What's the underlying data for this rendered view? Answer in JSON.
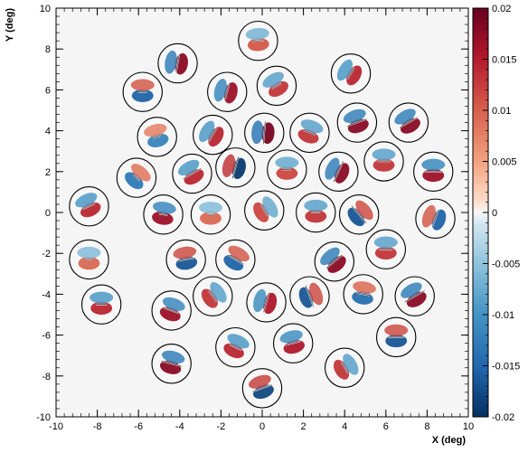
{
  "chart_data": {
    "type": "heatmap",
    "title": "",
    "xlabel": "X (deg)",
    "ylabel": "Y (deg)",
    "xlim": [
      -10,
      10
    ],
    "ylim": [
      -10,
      10
    ],
    "x_ticks": [
      -10,
      -8,
      -6,
      -4,
      -2,
      0,
      2,
      4,
      6,
      8,
      10
    ],
    "y_ticks": [
      -10,
      -8,
      -6,
      -4,
      -2,
      0,
      2,
      4,
      6,
      8,
      10
    ],
    "colorbar": {
      "min": -0.02,
      "max": 0.02,
      "ticks": [
        "0.02",
        "0.015",
        "0.01",
        "0.005",
        "0",
        "-0.005",
        "-0.01",
        "-0.015",
        "-0.02"
      ],
      "colors": {
        "low": "#053061",
        "mid": "#f7f7f7",
        "high": "#67001f"
      }
    },
    "background_color": "#f5f5f5",
    "patch_radius_deg": 0.95,
    "patches": [
      {
        "x": -0.2,
        "y": 8.4,
        "amp": 0.3,
        "angle": 5,
        "len": 0.25
      },
      {
        "x": -4.1,
        "y": 7.3,
        "amp": 0.9,
        "angle": 80,
        "len": 0.4
      },
      {
        "x": 4.3,
        "y": 6.8,
        "amp": 0.6,
        "angle": 60,
        "len": 0.3
      },
      {
        "x": -5.8,
        "y": 5.9,
        "amp": -0.7,
        "angle": 0,
        "len": 0.2
      },
      {
        "x": -1.7,
        "y": 5.9,
        "amp": 0.8,
        "angle": 75,
        "len": 0.35
      },
      {
        "x": 0.7,
        "y": 6.2,
        "amp": 0.5,
        "angle": 30,
        "len": 0.25
      },
      {
        "x": -5.1,
        "y": 3.7,
        "amp": -0.4,
        "angle": 15,
        "len": 0.2
      },
      {
        "x": -2.4,
        "y": 3.8,
        "amp": 0.6,
        "angle": 60,
        "len": 0.4
      },
      {
        "x": 0.1,
        "y": 3.9,
        "amp": 1.0,
        "angle": 85,
        "len": 0.5
      },
      {
        "x": 2.3,
        "y": 3.9,
        "amp": 0.5,
        "angle": -20,
        "len": 0.3
      },
      {
        "x": 4.6,
        "y": 4.4,
        "amp": 0.9,
        "angle": 20,
        "len": 0.45
      },
      {
        "x": 7.1,
        "y": 4.4,
        "amp": 0.9,
        "angle": 30,
        "len": 0.45
      },
      {
        "x": -6.1,
        "y": 1.7,
        "amp": -0.5,
        "angle": -40,
        "len": 0.2
      },
      {
        "x": -3.4,
        "y": 1.9,
        "amp": 0.6,
        "angle": 30,
        "len": 0.45
      },
      {
        "x": -1.3,
        "y": 2.2,
        "amp": -1.0,
        "angle": 75,
        "len": 0.5
      },
      {
        "x": 1.2,
        "y": 2.1,
        "amp": 0.4,
        "angle": 0,
        "len": 0.2
      },
      {
        "x": 3.7,
        "y": 2.0,
        "amp": 0.9,
        "angle": 65,
        "len": 0.5
      },
      {
        "x": 5.9,
        "y": 2.5,
        "amp": 0.5,
        "angle": 0,
        "len": 0.3
      },
      {
        "x": 8.3,
        "y": 2.0,
        "amp": 0.8,
        "angle": 0,
        "len": 0.4
      },
      {
        "x": -8.4,
        "y": 0.3,
        "amp": 0.6,
        "angle": 25,
        "len": 0.3
      },
      {
        "x": -4.8,
        "y": -0.1,
        "amp": 0.8,
        "angle": -10,
        "len": 0.2
      },
      {
        "x": -2.5,
        "y": -0.1,
        "amp": 0.2,
        "angle": 0,
        "len": 0.15
      },
      {
        "x": 0.1,
        "y": 0.1,
        "amp": 0.4,
        "angle": -60,
        "len": 0.3
      },
      {
        "x": 2.6,
        "y": 0.0,
        "amp": 0.5,
        "angle": 0,
        "len": 0.2
      },
      {
        "x": 4.7,
        "y": -0.1,
        "amp": -0.8,
        "angle": -50,
        "len": 0.5
      },
      {
        "x": 8.4,
        "y": -0.3,
        "amp": -0.7,
        "angle": 70,
        "len": 0.4
      },
      {
        "x": -8.4,
        "y": -2.3,
        "amp": 0.2,
        "angle": 0,
        "len": 0.15
      },
      {
        "x": -3.7,
        "y": -2.3,
        "amp": -0.8,
        "angle": 10,
        "len": 0.4
      },
      {
        "x": -1.3,
        "y": -2.3,
        "amp": -0.7,
        "angle": -30,
        "len": 0.4
      },
      {
        "x": 3.5,
        "y": -2.4,
        "amp": 0.9,
        "angle": 40,
        "len": 0.45
      },
      {
        "x": 6.0,
        "y": -1.8,
        "amp": 0.5,
        "angle": 0,
        "len": 0.3
      },
      {
        "x": -7.8,
        "y": -4.5,
        "amp": 0.6,
        "angle": 0,
        "len": 0.25
      },
      {
        "x": -4.4,
        "y": -4.8,
        "amp": 0.8,
        "angle": -20,
        "len": 0.35
      },
      {
        "x": -2.4,
        "y": -4.1,
        "amp": 0.5,
        "angle": -55,
        "len": 0.3
      },
      {
        "x": 0.2,
        "y": -4.4,
        "amp": 0.7,
        "angle": 75,
        "len": 0.45
      },
      {
        "x": 2.3,
        "y": -4.1,
        "amp": -0.8,
        "angle": -70,
        "len": 0.5
      },
      {
        "x": 4.9,
        "y": -4.0,
        "amp": -0.6,
        "angle": -10,
        "len": 0.3
      },
      {
        "x": 7.4,
        "y": -4.1,
        "amp": 0.9,
        "angle": 30,
        "len": 0.5
      },
      {
        "x": -1.3,
        "y": -6.6,
        "amp": 0.6,
        "angle": -25,
        "len": 0.3
      },
      {
        "x": 1.5,
        "y": -6.4,
        "amp": 0.7,
        "angle": 15,
        "len": 0.35
      },
      {
        "x": 6.5,
        "y": -6.1,
        "amp": -0.8,
        "angle": 0,
        "len": 0.35
      },
      {
        "x": -4.4,
        "y": -7.4,
        "amp": 0.9,
        "angle": -15,
        "len": 0.45
      },
      {
        "x": 4.0,
        "y": -7.6,
        "amp": 0.5,
        "angle": -60,
        "len": 0.3
      },
      {
        "x": 0.0,
        "y": -8.6,
        "amp": -0.9,
        "angle": 20,
        "len": 0.45
      }
    ]
  }
}
